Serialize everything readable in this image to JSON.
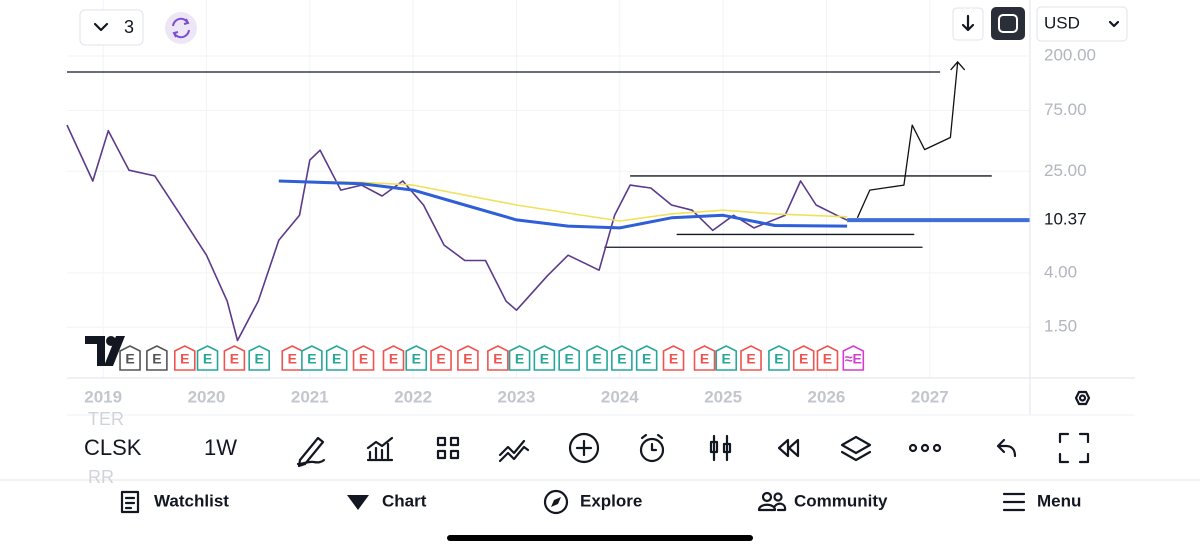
{
  "top_bar": {
    "layout_count": "3",
    "currency": "USD"
  },
  "chart_data": {
    "type": "line",
    "log_scale": true,
    "grid": true,
    "xlim": [
      2018.65,
      2027.97
    ],
    "ylim": [
      0.6,
      550
    ],
    "xticks": [
      2019,
      2020,
      2021,
      2022,
      2023,
      2024,
      2025,
      2026,
      2027
    ],
    "yticks": [
      {
        "value": 200,
        "label": "200.00"
      },
      {
        "value": 75,
        "label": "75.00"
      },
      {
        "value": 25,
        "label": "25.00"
      },
      {
        "value": 4,
        "label": "4.00"
      },
      {
        "value": 1.5,
        "label": "1.50"
      }
    ],
    "last_price": 10.37,
    "series": [
      {
        "color": "#5b3a8c",
        "width": 1.6,
        "x": [
          2018.65,
          2018.9,
          2019.05,
          2019.25,
          2019.5,
          2019.75,
          2020.0,
          2020.2,
          2020.3,
          2020.5,
          2020.7,
          2020.9,
          2021.0,
          2021.1,
          2021.3,
          2021.5,
          2021.7,
          2021.9,
          2022.1,
          2022.3,
          2022.5,
          2022.7,
          2022.9,
          2023.0,
          2023.3,
          2023.5,
          2023.8,
          2023.95,
          2024.1,
          2024.3,
          2024.5,
          2024.7,
          2024.9,
          2025.1,
          2025.3,
          2025.6,
          2025.75,
          2025.9,
          2026.1,
          2026.2
        ],
        "values": [
          57.5,
          21,
          52,
          25.5,
          23,
          11.3,
          5.5,
          2.4,
          1.18,
          2.4,
          7.2,
          11.3,
          30.6,
          36.6,
          17.8,
          19.5,
          16,
          21,
          13.6,
          6.6,
          5.0,
          5.0,
          2.4,
          2.04,
          3.8,
          5.5,
          4.2,
          11.3,
          19.5,
          18.5,
          13.6,
          12.4,
          8.6,
          11.3,
          9.0,
          11.3,
          21,
          13.6,
          11.3,
          10.37
        ]
      },
      {
        "color": "#f0e15a",
        "width": 1.6,
        "x": [
          2020.7,
          2021.5,
          2022.0,
          2023.0,
          2024.0,
          2024.5,
          2025.0,
          2025.5,
          2026.2
        ],
        "values": [
          21,
          20.5,
          19.5,
          13.6,
          10.2,
          11.6,
          12.4,
          11.6,
          11.0
        ]
      },
      {
        "color": "#2f5fd8",
        "width": 3,
        "x": [
          2020.7,
          2021.5,
          2022.0,
          2022.5,
          2023.0,
          2023.5,
          2024.0,
          2024.5,
          2025.0,
          2025.5,
          2026.2
        ],
        "values": [
          21,
          20,
          17.8,
          13.6,
          10.4,
          9.3,
          9.0,
          10.8,
          11.3,
          9.4,
          9.3
        ]
      },
      {
        "color": "#111111",
        "width": 1.3,
        "x": [
          2026.3,
          2026.42,
          2026.75,
          2026.83,
          2026.95,
          2027.2,
          2027.27
        ],
        "values": [
          10.8,
          17.8,
          19.5,
          57.5,
          37,
          46,
          180
        ]
      }
    ],
    "levels": [
      {
        "value": 150,
        "x": [
          2018.65,
          2027.1
        ]
      },
      {
        "value": 23,
        "x": [
          2024.1,
          2027.6
        ]
      },
      {
        "value": 8.0,
        "x": [
          2024.55,
          2026.85
        ]
      },
      {
        "value": 6.35,
        "x": [
          2023.85,
          2026.93
        ]
      }
    ],
    "earnings": [
      {
        "x": 2019.26,
        "label": "E",
        "color": "#555555"
      },
      {
        "x": 2019.52,
        "label": "E",
        "color": "#555555"
      },
      {
        "x": 2019.79,
        "label": "E",
        "color": "#ef5350"
      },
      {
        "x": 2020.01,
        "label": "E",
        "color": "#26a69a"
      },
      {
        "x": 2020.27,
        "label": "E",
        "color": "#ef5350"
      },
      {
        "x": 2020.51,
        "label": "E",
        "color": "#26a69a"
      },
      {
        "x": 2020.83,
        "label": "E",
        "color": "#ef5350"
      },
      {
        "x": 2021.02,
        "label": "E",
        "color": "#26a69a"
      },
      {
        "x": 2021.26,
        "label": "E",
        "color": "#26a69a"
      },
      {
        "x": 2021.52,
        "label": "E",
        "color": "#ef5350"
      },
      {
        "x": 2021.81,
        "label": "E",
        "color": "#ef5350"
      },
      {
        "x": 2022.03,
        "label": "E",
        "color": "#26a69a"
      },
      {
        "x": 2022.27,
        "label": "E",
        "color": "#ef5350"
      },
      {
        "x": 2022.53,
        "label": "E",
        "color": "#ef5350"
      },
      {
        "x": 2022.82,
        "label": "E",
        "color": "#ef5350"
      },
      {
        "x": 2023.03,
        "label": "E",
        "color": "#26a69a"
      },
      {
        "x": 2023.27,
        "label": "E",
        "color": "#26a69a"
      },
      {
        "x": 2023.51,
        "label": "E",
        "color": "#26a69a"
      },
      {
        "x": 2023.78,
        "label": "E",
        "color": "#26a69a"
      },
      {
        "x": 2024.02,
        "label": "E",
        "color": "#26a69a"
      },
      {
        "x": 2024.26,
        "label": "E",
        "color": "#26a69a"
      },
      {
        "x": 2024.52,
        "label": "E",
        "color": "#ef5350"
      },
      {
        "x": 2024.82,
        "label": "E",
        "color": "#ef5350"
      },
      {
        "x": 2025.03,
        "label": "E",
        "color": "#26a69a"
      },
      {
        "x": 2025.27,
        "label": "E",
        "color": "#ef5350"
      },
      {
        "x": 2025.54,
        "label": "E",
        "color": "#26a69a"
      },
      {
        "x": 2025.78,
        "label": "E",
        "color": "#ef5350"
      },
      {
        "x": 2026.01,
        "label": "E",
        "color": "#ef5350"
      },
      {
        "x": 2026.26,
        "label": "≈E",
        "color": "#d13fd1"
      }
    ]
  },
  "background_labels": [
    "TER",
    "RR"
  ],
  "bottom_toolbar": {
    "symbol": "CLSK",
    "interval": "1W"
  },
  "nav": [
    "Watchlist",
    "Chart",
    "Explore",
    "Community",
    "Menu"
  ]
}
